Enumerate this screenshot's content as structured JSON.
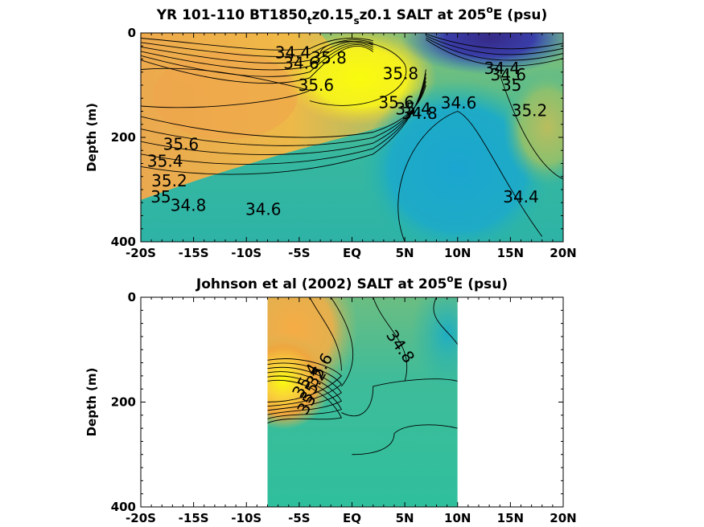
{
  "chart_data": [
    {
      "type": "heatmap",
      "title_parts": [
        "YR 101-110 BT1850",
        "t",
        "z0.15",
        "s",
        "z0.1 SALT at 205",
        "o",
        "E (psu)"
      ],
      "ylabel": "Depth (m)",
      "xlim": [
        -20,
        20
      ],
      "ylim": [
        0,
        400
      ],
      "x_ticks": [
        -20,
        -15,
        -10,
        -5,
        0,
        5,
        10,
        15,
        20
      ],
      "x_tick_labels": [
        "-20S",
        "-15S",
        "-10S",
        "-5S",
        "EQ",
        "5N",
        "10N",
        "15N",
        "20N"
      ],
      "y_ticks": [
        0,
        200,
        400
      ],
      "y_tick_labels": [
        "0",
        "200",
        "400"
      ],
      "colormap": [
        "#352a87",
        "#0f5cdd",
        "#1481d6",
        "#06a4ca",
        "#2eb7a4",
        "#87bf77",
        "#d1bb59",
        "#fec832",
        "#f9fb0e"
      ],
      "color_range": [
        34.0,
        35.8
      ],
      "contour_labels": [
        {
          "text": "34.4",
          "x": -5.6,
          "y": 40
        },
        {
          "text": "34.6",
          "x": -4.8,
          "y": 60
        },
        {
          "text": "35.8",
          "x": -2.2,
          "y": 50
        },
        {
          "text": "35.6",
          "x": -3.4,
          "y": 102
        },
        {
          "text": "35.8",
          "x": 4.6,
          "y": 80
        },
        {
          "text": "35.6",
          "x": 4.2,
          "y": 135
        },
        {
          "text": "35.4",
          "x": 5.8,
          "y": 148
        },
        {
          "text": "34.8",
          "x": 6.4,
          "y": 156
        },
        {
          "text": "34.6",
          "x": 10.1,
          "y": 136
        },
        {
          "text": "34.4",
          "x": 14.2,
          "y": 70
        },
        {
          "text": "34.6",
          "x": 14.8,
          "y": 82
        },
        {
          "text": "35",
          "x": 15.1,
          "y": 102
        },
        {
          "text": "35.2",
          "x": 16.8,
          "y": 151
        },
        {
          "text": "35.6",
          "x": -16.2,
          "y": 215
        },
        {
          "text": "35.4",
          "x": -17.7,
          "y": 248
        },
        {
          "text": "35.2",
          "x": -17.3,
          "y": 285
        },
        {
          "text": "35",
          "x": -18.1,
          "y": 316
        },
        {
          "text": "34.8",
          "x": -15.5,
          "y": 332
        },
        {
          "text": "34.6",
          "x": -8.4,
          "y": 340
        },
        {
          "text": "34.4",
          "x": 16.0,
          "y": 316
        }
      ]
    },
    {
      "type": "heatmap",
      "title_parts": [
        "Johnson et al (2002) SALT at 205",
        "o",
        "E (psu)"
      ],
      "ylabel": "Depth (m)",
      "xlim": [
        -20,
        20
      ],
      "ylim": [
        0,
        400
      ],
      "data_xlim": [
        -8,
        10
      ],
      "x_ticks": [
        -20,
        -15,
        -10,
        -5,
        0,
        5,
        10,
        15,
        20
      ],
      "x_tick_labels": [
        "-20S",
        "-15S",
        "-10S",
        "-5S",
        "EQ",
        "5N",
        "10N",
        "15N",
        "20N"
      ],
      "y_ticks": [
        0,
        200,
        400
      ],
      "y_tick_labels": [
        "0",
        "200",
        "400"
      ],
      "contour_labels": [
        {
          "text": "34.8",
          "x": 4.5,
          "y": 95
        },
        {
          "text": "35.6",
          "x": -3.0,
          "y": 140
        },
        {
          "text": "35.2",
          "x": -3.6,
          "y": 170
        },
        {
          "text": "35.4",
          "x": -4.3,
          "y": 160
        },
        {
          "text": "35",
          "x": -4.2,
          "y": 205
        }
      ]
    }
  ]
}
